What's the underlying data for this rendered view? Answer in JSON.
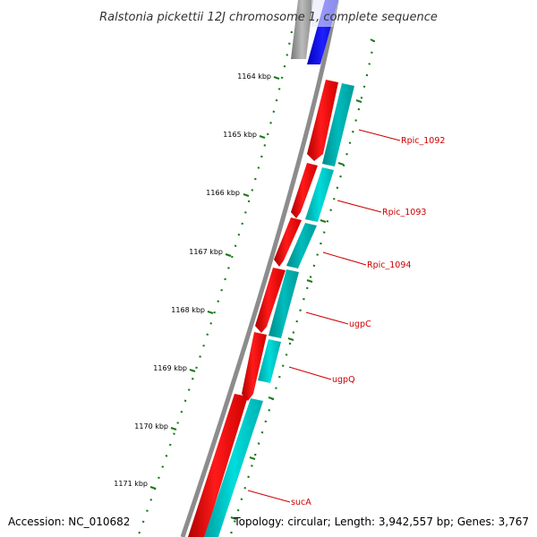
{
  "title": "Ralstonia pickettii 12J chromosome 1, complete sequence",
  "ticks": [
    "1164 kbp",
    "1165 kbp",
    "1166 kbp",
    "1167 kbp",
    "1168 kbp",
    "1169 kbp",
    "1170 kbp",
    "1171 kbp"
  ],
  "genes": [
    "Rpic_1092",
    "Rpic_1093",
    "Rpic_1094",
    "ugpC",
    "ugpQ",
    "sucA"
  ],
  "footer": {
    "accession": "Accession: NC_010682",
    "summary": "Topology: circular; Length: 3,942,557 bp; Genes: 3,767"
  },
  "colors": {
    "forward_cds": "#ff0000",
    "cog_track": "#00c8c8",
    "backbone": "#8c8c8c",
    "ticks": "#1a7a1a",
    "labels": "#cc0000",
    "highlight_feature": "#0000ee"
  }
}
